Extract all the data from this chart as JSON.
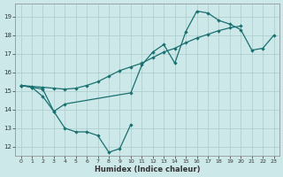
{
  "xlabel": "Humidex (Indice chaleur)",
  "background_color": "#cce8e8",
  "grid_color": "#aacccc",
  "line_color": "#1a7070",
  "xlim": [
    -0.5,
    23.5
  ],
  "ylim": [
    11.5,
    19.7
  ],
  "xticks": [
    0,
    1,
    2,
    3,
    4,
    5,
    6,
    7,
    8,
    9,
    10,
    11,
    12,
    13,
    14,
    15,
    16,
    17,
    18,
    19,
    20,
    21,
    22,
    23
  ],
  "yticks": [
    12,
    13,
    14,
    15,
    16,
    17,
    18,
    19
  ],
  "line1_x": [
    0,
    1,
    2,
    3,
    4,
    5,
    6,
    7,
    8,
    9,
    10
  ],
  "line1_y": [
    15.3,
    15.2,
    14.7,
    13.9,
    13.0,
    12.8,
    12.8,
    12.6,
    11.7,
    11.9,
    13.2
  ],
  "line2_x": [
    0,
    1,
    2,
    3,
    4,
    5,
    6,
    7,
    8,
    9,
    10,
    11,
    12,
    13,
    14,
    15,
    16,
    17,
    18,
    19,
    20
  ],
  "line2_y": [
    15.3,
    15.25,
    15.2,
    15.15,
    15.1,
    15.15,
    15.3,
    15.5,
    15.8,
    16.1,
    16.3,
    16.5,
    16.8,
    17.1,
    17.3,
    17.6,
    17.85,
    18.05,
    18.25,
    18.4,
    18.5
  ],
  "line3_x": [
    0,
    1,
    2,
    3,
    4,
    10,
    11,
    12,
    13,
    14,
    15,
    16,
    17,
    18,
    19,
    20,
    21,
    22,
    23
  ],
  "line3_y": [
    15.3,
    15.2,
    15.1,
    13.9,
    14.3,
    14.9,
    16.4,
    17.1,
    17.5,
    16.5,
    18.2,
    19.3,
    19.2,
    18.8,
    18.6,
    18.3,
    17.2,
    17.3,
    18.0
  ]
}
